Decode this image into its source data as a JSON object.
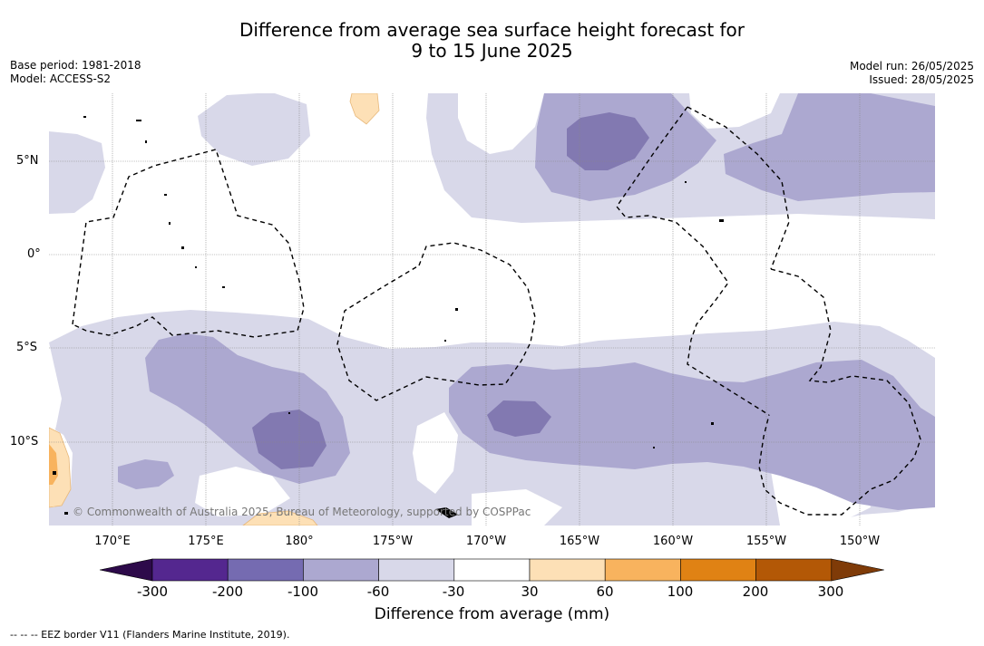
{
  "title": {
    "line1": "Difference from average sea surface height forecast for",
    "line2": "9 to 15 June 2025"
  },
  "meta": {
    "base_period": "Base period: 1981-2018",
    "model": "Model: ACCESS-S2",
    "model_run": "Model run: 26/05/2025",
    "issued": "Issued: 28/05/2025"
  },
  "map": {
    "lat_labels": [
      "5°N",
      "0°",
      "5°S",
      "10°S"
    ],
    "lon_labels": [
      "170°E",
      "175°E",
      "180°",
      "175°W",
      "170°W",
      "165°W",
      "160°W",
      "155°W",
      "150°W"
    ],
    "credit": "© Commonwealth of Australia 2025, Bureau of Meteorology, supported by COSPPac"
  },
  "colorbar": {
    "ticks": [
      "-300",
      "-200",
      "-100",
      "-60",
      "-30",
      "30",
      "60",
      "100",
      "200",
      "300"
    ],
    "colors": [
      "#2d0a4a",
      "#54278f",
      "#756bb1",
      "#aca8d0",
      "#d8d8e9",
      "#ffffff",
      "#fde0b6",
      "#f8b35e",
      "#e08214",
      "#b35806",
      "#7f3b08"
    ],
    "label": "Difference from average (mm)"
  },
  "legend": {
    "eez": "--  --  -- EEZ border V11 (Flanders Marine Institute, 2019)."
  }
}
